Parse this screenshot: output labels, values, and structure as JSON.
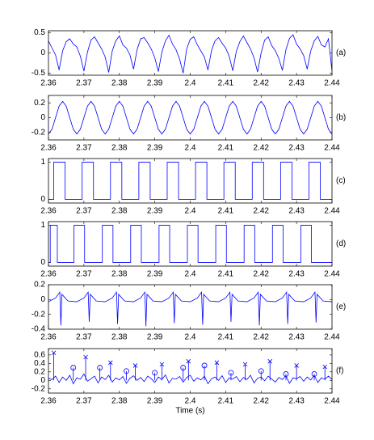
{
  "chart_data": [
    {
      "type": "line",
      "label": "(a)",
      "xlim": [
        2.36,
        2.44
      ],
      "xticks": [
        2.36,
        2.37,
        2.38,
        2.39,
        2.4,
        2.41,
        2.42,
        2.43,
        2.44
      ],
      "ylim": [
        -0.55,
        0.55
      ],
      "yticks": [
        -0.5,
        0,
        0.5
      ],
      "series": [
        {
          "color": "#0000ff",
          "x": [
            2.36,
            2.361,
            2.362,
            2.363,
            2.364,
            2.365,
            2.366,
            2.367,
            2.368,
            2.369,
            2.37,
            2.371,
            2.372,
            2.373,
            2.374,
            2.375,
            2.376,
            2.377,
            2.378,
            2.379,
            2.38,
            2.381,
            2.382,
            2.383,
            2.384,
            2.385,
            2.386,
            2.387,
            2.388,
            2.389,
            2.39,
            2.391,
            2.392,
            2.393,
            2.394,
            2.395,
            2.396,
            2.397,
            2.398,
            2.399,
            2.4,
            2.401,
            2.402,
            2.403,
            2.404,
            2.405,
            2.406,
            2.407,
            2.408,
            2.409,
            2.41,
            2.411,
            2.412,
            2.413,
            2.414,
            2.415,
            2.416,
            2.417,
            2.418,
            2.419,
            2.42,
            2.421,
            2.422,
            2.423,
            2.424,
            2.425,
            2.426,
            2.427,
            2.428,
            2.429,
            2.43,
            2.431,
            2.432,
            2.433,
            2.434,
            2.435,
            2.436,
            2.437,
            2.438,
            2.439,
            2.44
          ],
          "values": [
            0.3,
            0.12,
            -0.05,
            -0.42,
            0.05,
            0.28,
            0.35,
            0.22,
            0.15,
            -0.08,
            -0.45,
            0.02,
            0.32,
            0.4,
            0.25,
            0.1,
            -0.1,
            -0.48,
            0.05,
            0.3,
            0.42,
            0.2,
            0.12,
            -0.05,
            -0.4,
            0.08,
            0.35,
            0.38,
            0.25,
            0.1,
            -0.12,
            -0.46,
            0.02,
            0.3,
            0.44,
            0.22,
            0.08,
            -0.15,
            -0.5,
            0.1,
            0.34,
            0.4,
            0.2,
            0.05,
            -0.1,
            -0.42,
            0.06,
            0.3,
            0.38,
            0.24,
            0.12,
            -0.08,
            -0.44,
            0.04,
            0.28,
            0.42,
            0.26,
            0.1,
            -0.12,
            -0.47,
            0.0,
            0.32,
            0.4,
            0.18,
            0.06,
            -0.14,
            -0.43,
            0.08,
            0.36,
            0.45,
            0.22,
            0.1,
            -0.06,
            -0.4,
            0.05,
            0.3,
            0.41,
            0.2,
            0.15,
            0.35,
            -0.45
          ]
        }
      ]
    },
    {
      "type": "line",
      "label": "(b)",
      "xlim": [
        2.36,
        2.44
      ],
      "xticks": [
        2.36,
        2.37,
        2.38,
        2.39,
        2.4,
        2.41,
        2.42,
        2.43,
        2.44
      ],
      "ylim": [
        -0.3,
        0.3
      ],
      "yticks": [
        -0.2,
        0,
        0.2
      ],
      "series": [
        {
          "color": "#0000ff",
          "x": [
            2.36,
            2.361,
            2.362,
            2.363,
            2.364,
            2.365,
            2.366,
            2.367,
            2.368,
            2.369,
            2.37,
            2.371,
            2.372,
            2.373,
            2.374,
            2.375,
            2.376,
            2.377,
            2.378,
            2.379,
            2.38,
            2.381,
            2.382,
            2.383,
            2.384,
            2.385,
            2.386,
            2.387,
            2.388,
            2.389,
            2.39,
            2.391,
            2.392,
            2.393,
            2.394,
            2.395,
            2.396,
            2.397,
            2.398,
            2.399,
            2.4,
            2.401,
            2.402,
            2.403,
            2.404,
            2.405,
            2.406,
            2.407,
            2.408,
            2.409,
            2.41,
            2.411,
            2.412,
            2.413,
            2.414,
            2.415,
            2.416,
            2.417,
            2.418,
            2.419,
            2.42,
            2.421,
            2.422,
            2.423,
            2.424,
            2.425,
            2.426,
            2.427,
            2.428,
            2.429,
            2.43,
            2.431,
            2.432,
            2.433,
            2.434,
            2.435,
            2.436,
            2.437,
            2.438,
            2.439,
            2.44
          ],
          "values": [
            -0.22,
            -0.156,
            0,
            0.156,
            0.22,
            0.156,
            0,
            -0.156,
            -0.22,
            -0.156,
            0,
            0.156,
            0.22,
            0.156,
            0,
            -0.156,
            -0.22,
            -0.156,
            0,
            0.156,
            0.22,
            0.156,
            0,
            -0.156,
            -0.22,
            -0.156,
            0,
            0.156,
            0.22,
            0.156,
            0,
            -0.156,
            -0.22,
            -0.156,
            0,
            0.156,
            0.22,
            0.156,
            0,
            -0.156,
            -0.22,
            -0.156,
            0,
            0.156,
            0.22,
            0.156,
            0,
            -0.156,
            -0.22,
            -0.156,
            0,
            0.156,
            0.22,
            0.156,
            0,
            -0.156,
            -0.22,
            -0.156,
            0,
            0.156,
            0.22,
            0.156,
            0,
            -0.156,
            -0.22,
            -0.156,
            0,
            0.156,
            0.22,
            0.156,
            0,
            -0.156,
            -0.22,
            -0.156,
            0,
            0.156,
            0.22,
            0.156,
            0,
            -0.156,
            -0.22
          ]
        }
      ]
    },
    {
      "type": "line",
      "label": "(c)",
      "xlim": [
        2.36,
        2.44
      ],
      "xticks": [
        2.36,
        2.37,
        2.38,
        2.39,
        2.4,
        2.41,
        2.42,
        2.43,
        2.44
      ],
      "ylim": [
        -0.1,
        1.1
      ],
      "yticks": [
        0,
        1
      ],
      "series": [
        {
          "color": "#0000ff",
          "x": [
            2.36,
            2.3615,
            2.3615,
            2.3647,
            2.3647,
            2.3695,
            2.3695,
            2.3727,
            2.3727,
            2.3775,
            2.3775,
            2.3807,
            2.3807,
            2.3855,
            2.3855,
            2.3887,
            2.3887,
            2.3935,
            2.3935,
            2.3967,
            2.3967,
            2.4015,
            2.4015,
            2.4047,
            2.4047,
            2.4095,
            2.4095,
            2.4127,
            2.4127,
            2.4175,
            2.4175,
            2.4207,
            2.4207,
            2.4255,
            2.4255,
            2.4287,
            2.4287,
            2.4335,
            2.4335,
            2.4367,
            2.4367,
            2.44
          ],
          "values": [
            0,
            0,
            1,
            1,
            0,
            0,
            1,
            1,
            0,
            0,
            1,
            1,
            0,
            0,
            1,
            1,
            0,
            0,
            1,
            1,
            0,
            0,
            1,
            1,
            0,
            0,
            1,
            1,
            0,
            0,
            1,
            1,
            0,
            0,
            1,
            1,
            0,
            0,
            1,
            1,
            0,
            0
          ]
        }
      ]
    },
    {
      "type": "line",
      "label": "(d)",
      "xlim": [
        2.36,
        2.44
      ],
      "xticks": [
        2.36,
        2.37,
        2.38,
        2.39,
        2.4,
        2.41,
        2.42,
        2.43,
        2.44
      ],
      "ylim": [
        -0.1,
        1.1
      ],
      "yticks": [
        0,
        1
      ],
      "series": [
        {
          "color": "#0000ff",
          "x": [
            2.36,
            2.3605,
            2.3605,
            2.3625,
            2.3625,
            2.3672,
            2.3672,
            2.3702,
            2.3702,
            2.3752,
            2.3752,
            2.3782,
            2.3782,
            2.3832,
            2.3832,
            2.3862,
            2.3862,
            2.3912,
            2.3912,
            2.3942,
            2.3942,
            2.3992,
            2.3992,
            2.4022,
            2.4022,
            2.4072,
            2.4072,
            2.4102,
            2.4102,
            2.4152,
            2.4152,
            2.4182,
            2.4182,
            2.4232,
            2.4232,
            2.4262,
            2.4262,
            2.4312,
            2.4312,
            2.4342,
            2.4342,
            2.44
          ],
          "values": [
            0,
            0,
            1,
            1,
            0,
            0,
            1,
            1,
            0,
            0,
            1,
            1,
            0,
            0,
            1,
            1,
            0,
            0,
            1,
            1,
            0,
            0,
            1,
            1,
            0,
            0,
            1,
            1,
            0,
            0,
            1,
            1,
            0,
            0,
            1,
            1,
            0,
            0,
            1,
            1,
            0,
            0
          ]
        }
      ]
    },
    {
      "type": "line",
      "label": "(e)",
      "xlim": [
        2.36,
        2.44
      ],
      "xticks": [
        2.36,
        2.37,
        2.38,
        2.39,
        2.4,
        2.41,
        2.42,
        2.43,
        2.44
      ],
      "ylim": [
        -0.4,
        0.2
      ],
      "yticks": [
        -0.4,
        -0.2,
        0,
        0.2
      ],
      "series": [
        {
          "color": "#0000ff",
          "x": [
            2.36,
            2.362,
            2.3632,
            2.3635,
            2.3638,
            2.3655,
            2.368,
            2.37,
            2.3712,
            2.3715,
            2.3718,
            2.3735,
            2.376,
            2.378,
            2.3792,
            2.3795,
            2.3798,
            2.3815,
            2.384,
            2.386,
            2.3872,
            2.3875,
            2.3878,
            2.3895,
            2.392,
            2.394,
            2.3952,
            2.3955,
            2.3958,
            2.3975,
            2.4,
            2.402,
            2.4032,
            2.4035,
            2.4038,
            2.4055,
            2.408,
            2.41,
            2.4112,
            2.4115,
            2.4118,
            2.4135,
            2.416,
            2.418,
            2.4192,
            2.4195,
            2.4198,
            2.4215,
            2.424,
            2.426,
            2.4272,
            2.4275,
            2.4278,
            2.4295,
            2.432,
            2.434,
            2.4352,
            2.4355,
            2.4358,
            2.4375,
            2.44
          ],
          "values": [
            -0.03,
            0.02,
            0.1,
            -0.35,
            0.07,
            -0.02,
            -0.03,
            0.02,
            0.1,
            -0.3,
            0.07,
            -0.02,
            -0.03,
            0.02,
            0.1,
            -0.33,
            0.07,
            -0.02,
            -0.03,
            0.02,
            0.1,
            -0.36,
            0.07,
            -0.02,
            -0.03,
            0.02,
            0.1,
            -0.32,
            0.07,
            -0.02,
            -0.03,
            0.02,
            0.1,
            -0.34,
            0.07,
            -0.02,
            -0.03,
            0.02,
            0.1,
            -0.3,
            0.07,
            -0.02,
            -0.03,
            0.02,
            0.1,
            -0.35,
            0.07,
            -0.02,
            -0.03,
            0.02,
            0.1,
            -0.33,
            0.07,
            -0.02,
            -0.03,
            0.02,
            0.1,
            -0.31,
            0.07,
            -0.02,
            -0.03
          ]
        }
      ]
    },
    {
      "type": "line",
      "label": "(f)",
      "xlabel": "Time (s)",
      "xlim": [
        2.36,
        2.44
      ],
      "xticks": [
        2.36,
        2.37,
        2.38,
        2.39,
        2.4,
        2.41,
        2.42,
        2.43,
        2.44
      ],
      "ylim": [
        -0.3,
        0.75
      ],
      "yticks": [
        -0.2,
        0,
        0.2,
        0.4,
        0.6
      ],
      "series": [
        {
          "color": "#0000ff",
          "x": [
            2.36,
            2.361,
            2.362,
            2.363,
            2.364,
            2.365,
            2.366,
            2.367,
            2.368,
            2.369,
            2.37,
            2.371,
            2.372,
            2.373,
            2.374,
            2.375,
            2.376,
            2.377,
            2.378,
            2.379,
            2.38,
            2.381,
            2.382,
            2.383,
            2.384,
            2.385,
            2.386,
            2.387,
            2.388,
            2.389,
            2.39,
            2.391,
            2.392,
            2.393,
            2.394,
            2.395,
            2.396,
            2.397,
            2.398,
            2.399,
            2.4,
            2.401,
            2.402,
            2.403,
            2.404,
            2.405,
            2.406,
            2.407,
            2.408,
            2.409,
            2.41,
            2.411,
            2.412,
            2.413,
            2.414,
            2.415,
            2.416,
            2.417,
            2.418,
            2.419,
            2.42,
            2.421,
            2.422,
            2.423,
            2.424,
            2.425,
            2.426,
            2.427,
            2.428,
            2.429,
            2.43,
            2.431,
            2.432,
            2.433,
            2.434,
            2.435,
            2.436,
            2.437,
            2.438,
            2.439,
            2.44
          ],
          "values": [
            0.05,
            0.02,
            0.1,
            -0.05,
            0.08,
            0.0,
            0.12,
            -0.08,
            0.06,
            0.03,
            0.15,
            -0.02,
            0.04,
            0.1,
            -0.06,
            0.08,
            0.02,
            0.12,
            -0.04,
            0.06,
            0.01,
            0.09,
            -0.07,
            0.05,
            0.11,
            0.0,
            0.07,
            -0.03,
            0.1,
            0.04,
            -0.05,
            0.08,
            0.02,
            0.13,
            -0.06,
            0.05,
            0.03,
            0.09,
            -0.04,
            0.07,
            0.12,
            -0.02,
            0.06,
            0.01,
            0.1,
            -0.08,
            0.04,
            0.08,
            0.0,
            0.11,
            -0.05,
            0.06,
            0.03,
            0.09,
            -0.03,
            0.07,
            0.02,
            0.12,
            -0.06,
            0.05,
            0.08,
            -0.01,
            0.1,
            0.03,
            -0.04,
            0.07,
            0.02,
            0.11,
            -0.07,
            0.06,
            0.04,
            0.09,
            -0.02,
            0.08,
            0.01,
            0.12,
            -0.05,
            0.06,
            0.03,
            0.1,
            0.02
          ]
        },
        {
          "color": "#0000ff",
          "marker": "x",
          "x": [
            2.3615,
            2.3705,
            2.3775,
            2.3845,
            2.392,
            2.3995,
            2.4075,
            2.4155,
            2.4225,
            2.43,
            2.438
          ],
          "values": [
            0.65,
            0.55,
            0.42,
            0.35,
            0.38,
            0.45,
            0.42,
            0.38,
            0.45,
            0.35,
            0.32
          ]
        },
        {
          "color": "#0000ff",
          "marker": "o",
          "x": [
            2.367,
            2.3745,
            2.382,
            2.39,
            2.398,
            2.404,
            2.4115,
            2.42,
            2.427,
            2.435
          ],
          "values": [
            0.3,
            0.3,
            0.22,
            0.18,
            0.3,
            0.35,
            0.18,
            0.22,
            0.15,
            0.15
          ]
        }
      ]
    }
  ]
}
